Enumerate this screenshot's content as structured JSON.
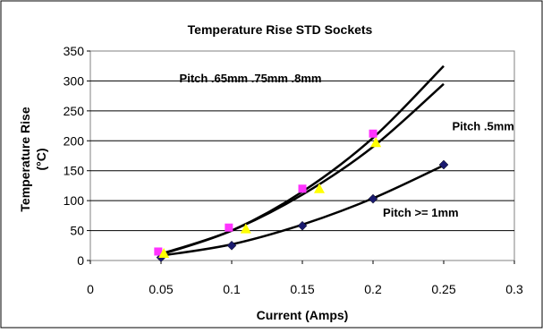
{
  "chart_data": {
    "type": "scatter",
    "title": "Temperature Rise STD Sockets",
    "xlabel": "Current (Amps)",
    "ylabel_line1": "Temperature Rise",
    "ylabel_line2": "(°C)",
    "xlim": [
      0,
      0.3
    ],
    "ylim": [
      0,
      350
    ],
    "xticks": [
      "0",
      "0.05",
      "0.1",
      "0.15",
      "0.2",
      "0.25",
      "0.3"
    ],
    "yticks": [
      "0",
      "50",
      "100",
      "150",
      "200",
      "250",
      "300",
      "350"
    ],
    "grid": "horizontal",
    "series": [
      {
        "name": "Pitch >= 1mm",
        "marker": "diamond",
        "color": "#1a1a6e",
        "points": [
          [
            0.05,
            5
          ],
          [
            0.1,
            25
          ],
          [
            0.15,
            58
          ],
          [
            0.2,
            103
          ],
          [
            0.25,
            160
          ]
        ]
      },
      {
        "name": "Pitch .65mm .75mm .8mm",
        "marker": "square",
        "color": "#ff33ff",
        "points": [
          [
            0.048,
            15
          ],
          [
            0.098,
            55
          ],
          [
            0.15,
            120
          ],
          [
            0.2,
            212
          ]
        ]
      },
      {
        "name": "Pitch .5mm",
        "marker": "triangle",
        "color": "#ffff00",
        "points": [
          [
            0.052,
            12
          ],
          [
            0.11,
            53
          ],
          [
            0.162,
            120
          ],
          [
            0.202,
            197
          ]
        ]
      }
    ],
    "trendlines": [
      {
        "name": "Pitch >= 1mm",
        "points": [
          [
            0.05,
            8
          ],
          [
            0.1,
            27
          ],
          [
            0.15,
            60
          ],
          [
            0.2,
            104
          ],
          [
            0.25,
            159
          ]
        ]
      },
      {
        "name": "Pitch .65mm .75mm .8mm",
        "points": [
          [
            0.05,
            10
          ],
          [
            0.1,
            50
          ],
          [
            0.15,
            115
          ],
          [
            0.2,
            205
          ],
          [
            0.25,
            325
          ]
        ]
      },
      {
        "name": "Pitch .5mm",
        "points": [
          [
            0.05,
            11
          ],
          [
            0.1,
            50
          ],
          [
            0.15,
            110
          ],
          [
            0.2,
            190
          ],
          [
            0.25,
            295
          ]
        ]
      }
    ],
    "annotations": [
      {
        "text": "Pitch .65mm .75mm .8mm",
        "x": 0.063,
        "y": 298
      },
      {
        "text": "Pitch .5mm",
        "x": 0.256,
        "y": 218
      },
      {
        "text": "Pitch >= 1mm",
        "x": 0.207,
        "y": 73
      }
    ]
  }
}
